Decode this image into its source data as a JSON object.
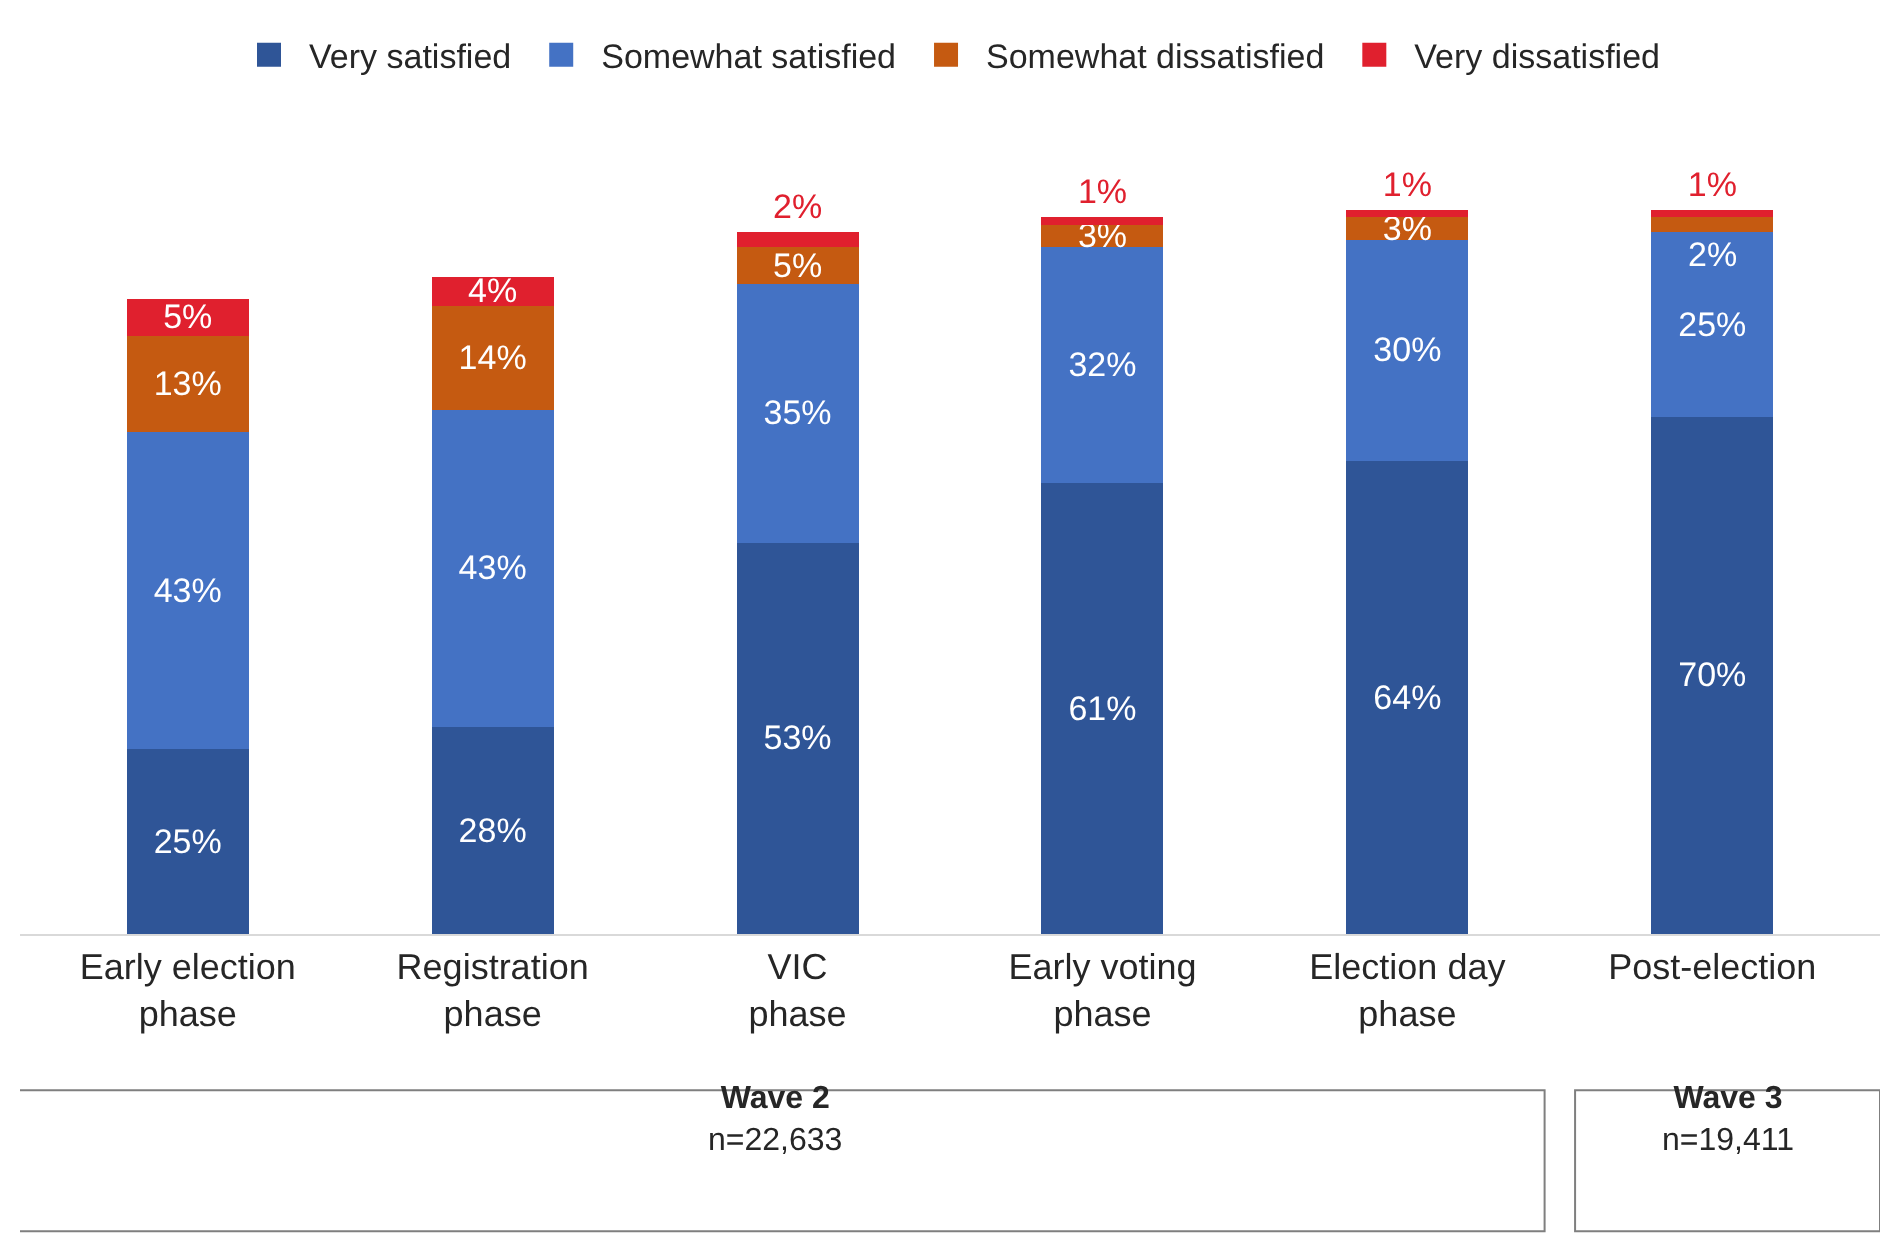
{
  "chart_data": {
    "type": "bar",
    "stacked": true,
    "legend": "top",
    "tick_labels": "x",
    "categories": [
      "Early election\nphase",
      "Registration\nphase",
      "VIC\nphase",
      "Early voting\nphase",
      "Election day\nphase",
      "Post-election"
    ],
    "series": [
      {
        "name": "Very satisfied",
        "color": "#2f5597",
        "values": [
          25,
          28,
          53,
          61,
          64,
          70
        ],
        "value_labels": [
          "25%",
          "28%",
          "53%",
          "61%",
          "64%",
          "70%"
        ]
      },
      {
        "name": "Somewhat satisfied",
        "color": "#4472c4",
        "values": [
          43,
          43,
          35,
          32,
          30,
          25
        ],
        "value_labels": [
          "43%",
          "43%",
          "35%",
          "32%",
          "30%",
          "25%"
        ]
      },
      {
        "name": "Somewhat dissatisfied",
        "color": "#c55a11",
        "values": [
          13,
          14,
          5,
          3,
          3,
          2
        ],
        "value_labels": [
          "13%",
          "14%",
          "5%",
          "3%",
          "3%",
          "2%"
        ]
      },
      {
        "name": "Very dissatisfied",
        "color": "#e0202e",
        "values": [
          5,
          4,
          2,
          1,
          1,
          1
        ],
        "value_labels": [
          "5%",
          "4%",
          "2%",
          "1%",
          "1%",
          "1%"
        ]
      }
    ],
    "annotations": [
      "Wave 2\nn=22,633",
      "Wave 3\nn=19,411"
    ]
  }
}
